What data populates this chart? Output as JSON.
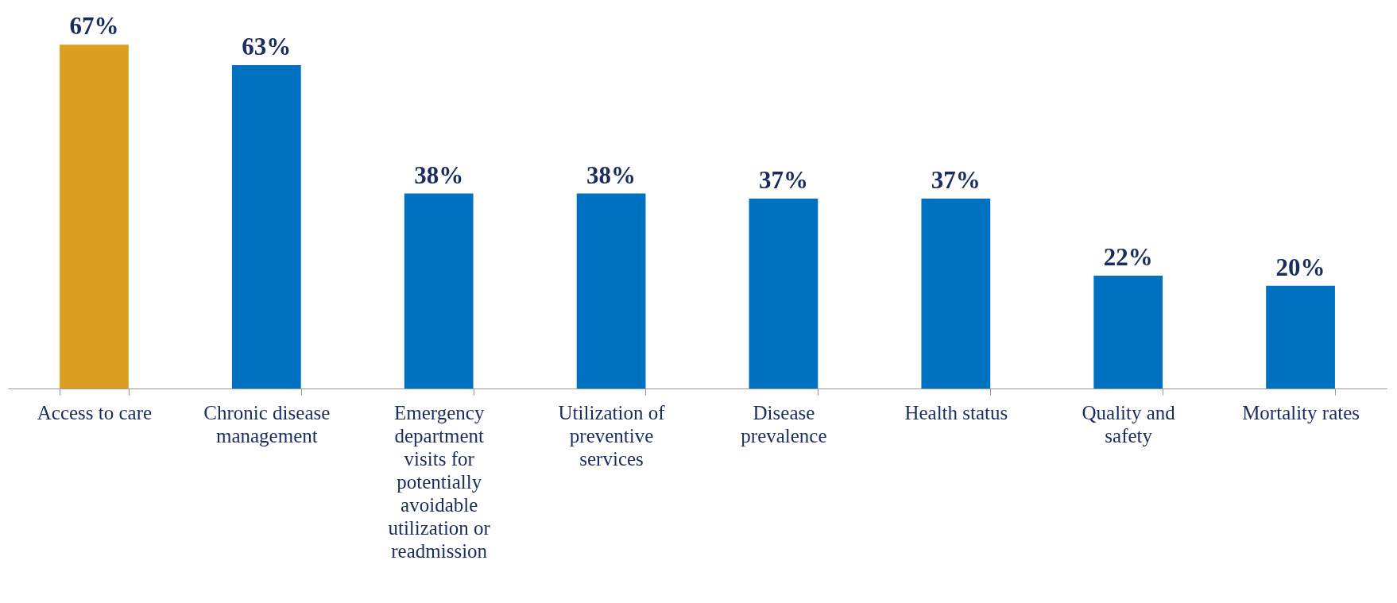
{
  "chart_data": {
    "type": "bar",
    "categories": [
      "Access to care",
      "Chronic disease management",
      "Emergency department visits for potentially avoidable utilization or readmission",
      "Utilization of preventive services",
      "Disease prevalence",
      "Health status",
      "Quality and safety",
      "Mortality rates"
    ],
    "values": [
      67,
      63,
      38,
      38,
      37,
      37,
      22,
      20
    ],
    "value_labels": [
      "67%",
      "63%",
      "38%",
      "38%",
      "37%",
      "37%",
      "22%",
      "20%"
    ],
    "colors": [
      "#dc9f20",
      "#0070c0",
      "#0070c0",
      "#0070c0",
      "#0070c0",
      "#0070c0",
      "#0070c0",
      "#0070c0"
    ],
    "grid": false
  }
}
